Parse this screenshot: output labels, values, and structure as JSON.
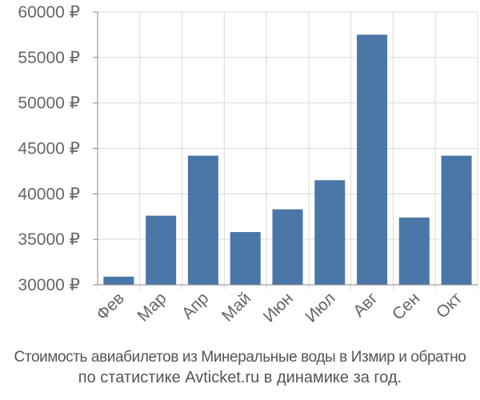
{
  "chart_data": {
    "type": "bar",
    "categories": [
      "Фев",
      "Мар",
      "Апр",
      "Май",
      "Июн",
      "Июл",
      "Авг",
      "Сен",
      "Окт"
    ],
    "values": [
      30900,
      37600,
      44200,
      35800,
      38300,
      41500,
      57500,
      37400,
      44200
    ],
    "ylim": [
      30000,
      60000
    ],
    "yticks": [
      30000,
      35000,
      40000,
      45000,
      50000,
      55000,
      60000
    ],
    "ytick_suffix": " ₽",
    "grid": true,
    "colors": {
      "bar": "#4a76a8",
      "grid": "#d9d9d9",
      "axis": "#888888",
      "text": "#666666"
    }
  },
  "caption": {
    "line1": "Стоимость авиабилетов из Минеральные воды в Измир и обратно",
    "line2": "по статистике Avticket.ru в динамике за год."
  }
}
